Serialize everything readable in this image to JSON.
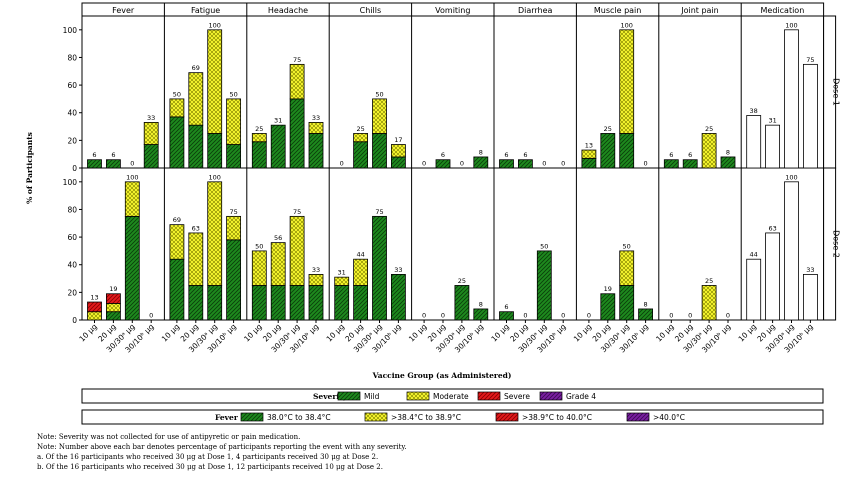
{
  "chart_data": {
    "type": "bar",
    "stacked": true,
    "panels": [
      "Fever",
      "Fatigue",
      "Headache",
      "Chills",
      "Vomiting",
      "Diarrhea",
      "Muscle pain",
      "Joint pain",
      "Medication"
    ],
    "rows": [
      "Dose 1",
      "Dose 2"
    ],
    "categories": [
      "10 μg",
      "20 μg",
      "30/30ᵃ μg",
      "30/10ᵇ μg"
    ],
    "ylabel": "% of Participants",
    "xlabel": "Vaccine Group (as Administered)",
    "ylim": [
      0,
      110
    ],
    "yticks": [
      0,
      20,
      40,
      60,
      80,
      100
    ],
    "segment_order": [
      "level1",
      "level2",
      "level3",
      "level4"
    ],
    "data": {
      "Dose 1": {
        "Fever": {
          "level1": [
            6,
            6,
            0,
            17
          ],
          "level2": [
            0,
            0,
            0,
            16
          ],
          "level3": [
            0,
            0,
            0,
            0
          ],
          "level4": [
            0,
            0,
            0,
            0
          ],
          "totals": [
            6,
            6,
            0,
            33
          ]
        },
        "Fatigue": {
          "level1": [
            37,
            31,
            25,
            17
          ],
          "level2": [
            13,
            38,
            75,
            33
          ],
          "level3": [
            0,
            0,
            0,
            0
          ],
          "level4": [
            0,
            0,
            0,
            0
          ],
          "totals": [
            50,
            69,
            100,
            50
          ]
        },
        "Headache": {
          "level1": [
            19,
            31,
            50,
            25
          ],
          "level2": [
            6,
            0,
            25,
            8
          ],
          "level3": [
            0,
            0,
            0,
            0
          ],
          "level4": [
            0,
            0,
            0,
            0
          ],
          "totals": [
            25,
            31,
            75,
            33
          ]
        },
        "Chills": {
          "level1": [
            0,
            19,
            25,
            8
          ],
          "level2": [
            0,
            6,
            25,
            9
          ],
          "level3": [
            0,
            0,
            0,
            0
          ],
          "level4": [
            0,
            0,
            0,
            0
          ],
          "totals": [
            0,
            25,
            50,
            17
          ]
        },
        "Vomiting": {
          "level1": [
            0,
            6,
            0,
            8
          ],
          "level2": [
            0,
            0,
            0,
            0
          ],
          "level3": [
            0,
            0,
            0,
            0
          ],
          "level4": [
            0,
            0,
            0,
            0
          ],
          "totals": [
            0,
            6,
            0,
            8
          ]
        },
        "Diarrhea": {
          "level1": [
            6,
            6,
            0,
            0
          ],
          "level2": [
            0,
            0,
            0,
            0
          ],
          "level3": [
            0,
            0,
            0,
            0
          ],
          "level4": [
            0,
            0,
            0,
            0
          ],
          "totals": [
            6,
            6,
            0,
            0
          ]
        },
        "Muscle pain": {
          "level1": [
            7,
            25,
            25,
            0
          ],
          "level2": [
            6,
            0,
            75,
            0
          ],
          "level3": [
            0,
            0,
            0,
            0
          ],
          "level4": [
            0,
            0,
            0,
            0
          ],
          "totals": [
            13,
            25,
            100,
            0
          ]
        },
        "Joint pain": {
          "level1": [
            6,
            6,
            0,
            8
          ],
          "level2": [
            0,
            0,
            25,
            0
          ],
          "level3": [
            0,
            0,
            0,
            0
          ],
          "level4": [
            0,
            0,
            0,
            0
          ],
          "totals": [
            6,
            6,
            25,
            8
          ]
        },
        "Medication": {
          "totals": [
            38,
            31,
            100,
            75
          ]
        }
      },
      "Dose 2": {
        "Fever": {
          "level1": [
            0,
            6,
            75,
            0
          ],
          "level2": [
            6,
            6,
            25,
            0
          ],
          "level3": [
            7,
            7,
            0,
            0
          ],
          "level4": [
            0,
            0,
            0,
            0
          ],
          "totals": [
            13,
            19,
            100,
            0
          ]
        },
        "Fatigue": {
          "level1": [
            44,
            25,
            25,
            58
          ],
          "level2": [
            25,
            38,
            75,
            17
          ],
          "level3": [
            0,
            0,
            0,
            0
          ],
          "level4": [
            0,
            0,
            0,
            0
          ],
          "totals": [
            69,
            63,
            100,
            75
          ]
        },
        "Headache": {
          "level1": [
            25,
            25,
            25,
            25
          ],
          "level2": [
            25,
            31,
            50,
            8
          ],
          "level3": [
            0,
            0,
            0,
            0
          ],
          "level4": [
            0,
            0,
            0,
            0
          ],
          "totals": [
            50,
            56,
            75,
            33
          ]
        },
        "Chills": {
          "level1": [
            25,
            25,
            75,
            33
          ],
          "level2": [
            6,
            19,
            0,
            0
          ],
          "level3": [
            0,
            0,
            0,
            0
          ],
          "level4": [
            0,
            0,
            0,
            0
          ],
          "totals": [
            31,
            44,
            75,
            33
          ]
        },
        "Vomiting": {
          "level1": [
            0,
            0,
            25,
            8
          ],
          "level2": [
            0,
            0,
            0,
            0
          ],
          "level3": [
            0,
            0,
            0,
            0
          ],
          "level4": [
            0,
            0,
            0,
            0
          ],
          "totals": [
            0,
            0,
            25,
            8
          ]
        },
        "Diarrhea": {
          "level1": [
            6,
            0,
            50,
            0
          ],
          "level2": [
            0,
            0,
            0,
            0
          ],
          "level3": [
            0,
            0,
            0,
            0
          ],
          "level4": [
            0,
            0,
            0,
            0
          ],
          "totals": [
            6,
            0,
            50,
            0
          ]
        },
        "Muscle pain": {
          "level1": [
            0,
            19,
            25,
            8
          ],
          "level2": [
            0,
            0,
            25,
            0
          ],
          "level3": [
            0,
            0,
            0,
            0
          ],
          "level4": [
            0,
            0,
            0,
            0
          ],
          "totals": [
            0,
            19,
            50,
            8
          ]
        },
        "Joint pain": {
          "level1": [
            0,
            0,
            0,
            0
          ],
          "level2": [
            0,
            0,
            25,
            0
          ],
          "level3": [
            0,
            0,
            0,
            0
          ],
          "level4": [
            0,
            0,
            0,
            0
          ],
          "totals": [
            0,
            0,
            25,
            0
          ]
        },
        "Medication": {
          "totals": [
            44,
            63,
            100,
            33
          ]
        }
      }
    },
    "legends": [
      {
        "title": "Severity",
        "entries": [
          "Mild",
          "Moderate",
          "Severe",
          "Grade 4"
        ]
      },
      {
        "title": "Fever",
        "entries": [
          "38.0°C to 38.4°C",
          ">38.4°C to 38.9°C",
          ">38.9°C to 40.0°C",
          ">40.0°C"
        ]
      }
    ],
    "colors": {
      "level1": "#1e8a1e",
      "level2": "#ffff33",
      "level3": "#e31a1c",
      "level4": "#7a1fa2",
      "medication": "#ffffff",
      "level2_hatch": "#8a8a00"
    }
  },
  "notes": [
    "Note: Severity was not collected for use of antipyretic or pain medication.",
    "Note: Number above each bar denotes percentage of participants reporting the event with any severity.",
    "a.    Of the 16 participants who received 30 μg at Dose 1, 4 participants received 30 μg at Dose 2.",
    "b.    Of the 16 participants who received 30 μg at Dose 1, 12 participants received 10 μg at Dose 2."
  ]
}
